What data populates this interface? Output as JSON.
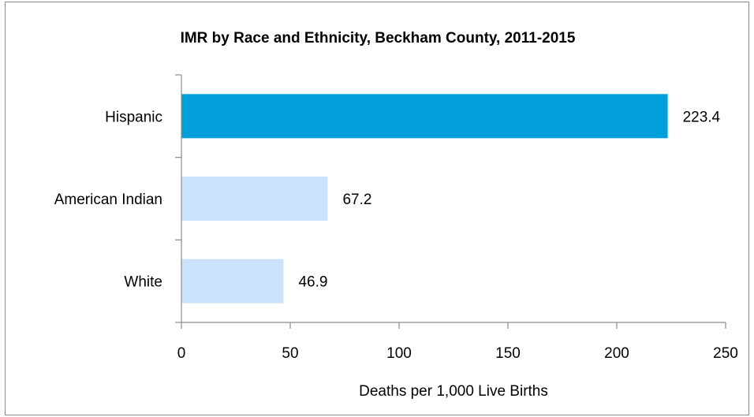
{
  "chart_data": {
    "type": "bar",
    "orientation": "horizontal",
    "title": "IMR by Race and Ethnicity, Beckham County, 2011-2015",
    "xlabel": "Deaths per 1,000 Live Births",
    "ylabel": "",
    "categories": [
      "Hispanic",
      "American Indian",
      "White"
    ],
    "values": [
      223.4,
      67.2,
      46.9
    ],
    "value_labels": [
      "223.4",
      "67.2",
      "46.9"
    ],
    "bar_colors": [
      "#009fd9",
      "#cce4fb",
      "#cce4fb"
    ],
    "xlim": [
      0,
      250
    ],
    "xticks": [
      0,
      50,
      100,
      150,
      200,
      250
    ],
    "xtick_labels": [
      "0",
      "50",
      "100",
      "150",
      "200",
      "250"
    ],
    "grid": false,
    "legend": "none",
    "axis_color": "#8c8c8c"
  }
}
